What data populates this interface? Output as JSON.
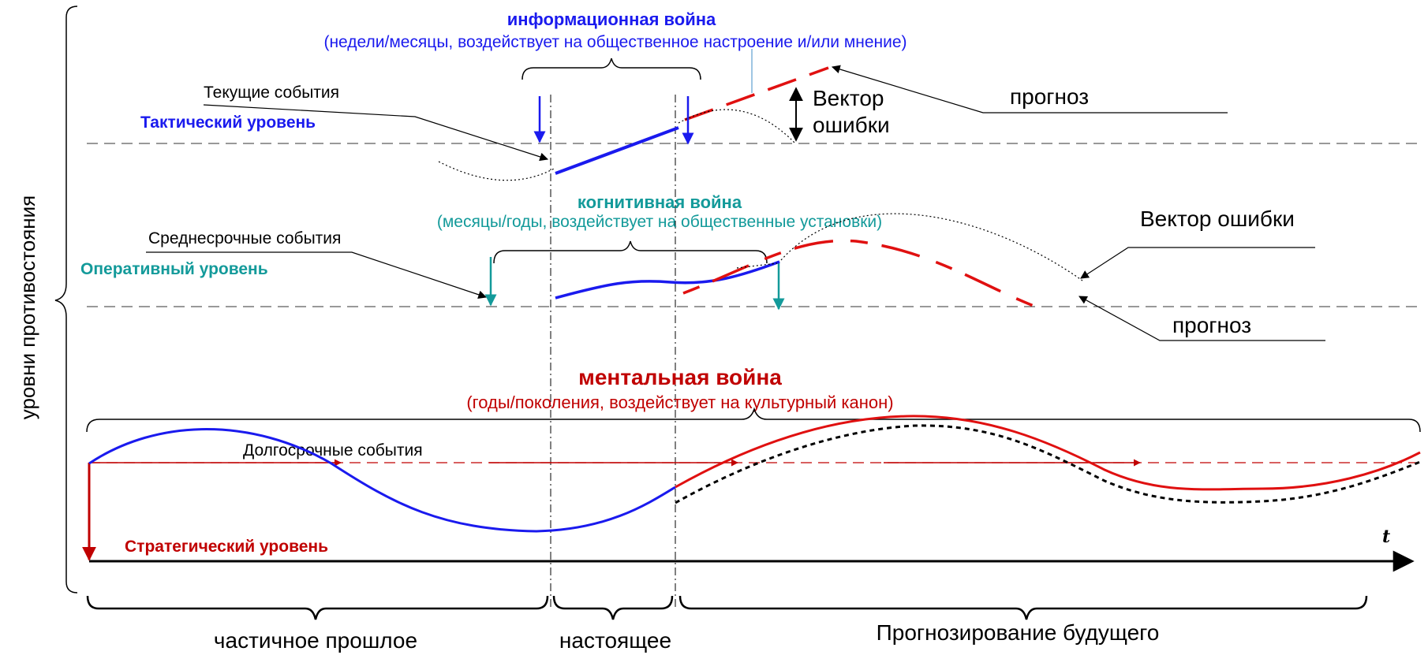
{
  "y_axis_label": "уровни противостояния",
  "time_axis_label": "t",
  "levels": {
    "tactical": "Тактический уровень",
    "operational": "Оперативный уровень",
    "strategic": "Стратегический уровень"
  },
  "events": {
    "current": "Текущие события",
    "medium_term": "Среднесрочные события",
    "long_term": "Долгосрочные события"
  },
  "wars": {
    "information": {
      "title": "информационная война",
      "subtitle": "(недели/месяцы, воздействует на общественное настроение и/или мнение)"
    },
    "cognitive": {
      "title": "когнитивная война",
      "subtitle": "(месяцы/годы, воздействует на общественные установки)"
    },
    "mental": {
      "title": "ментальная война",
      "subtitle": "(годы/поколения, воздействует на культурный канон)"
    }
  },
  "annotations": {
    "error_vector_top": [
      "Вектор",
      "ошибки"
    ],
    "forecast_top": "прогноз",
    "error_vector_mid": "Вектор ошибки",
    "forecast_mid": "прогноз"
  },
  "periods": {
    "past": "частичное прошлое",
    "present": "настоящее",
    "future": "Прогнозирование будущего"
  },
  "colors": {
    "blue": "#1a1aee",
    "teal": "#139a9a",
    "red": "#e01010",
    "dark_red": "#c00000",
    "black": "#000000"
  }
}
